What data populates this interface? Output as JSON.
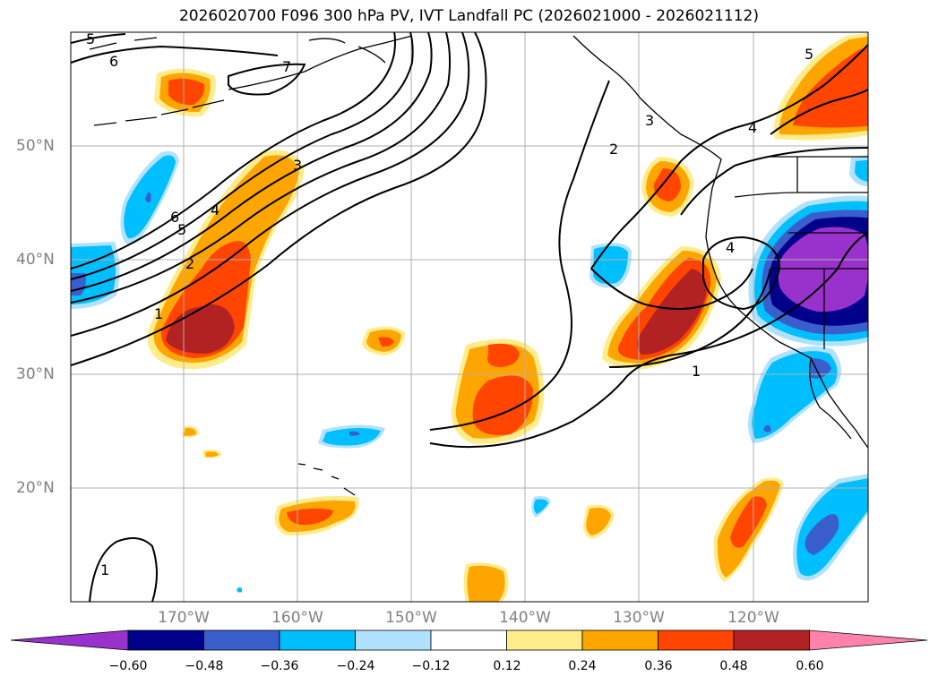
{
  "title": "2026020700 F096 300 hPa PV, IVT Landfall PC (2026021000 - 2026021112)",
  "lat_labels": [
    "50°N",
    "40°N",
    "30°N",
    "20°N"
  ],
  "lon_labels": [
    "170°W",
    "160°W",
    "150°W",
    "140°W",
    "130°W",
    "120°W"
  ],
  "contour_labels": [
    "5",
    "6",
    "7",
    "3",
    "4",
    "6",
    "5",
    "2",
    "1",
    "1",
    "2",
    "3",
    "4",
    "4",
    "1",
    "5"
  ],
  "colorbar": {
    "ticks": [
      "−0.60",
      "−0.48",
      "−0.36",
      "−0.24",
      "−0.12",
      "0.12",
      "0.24",
      "0.36",
      "0.48",
      "0.60"
    ],
    "colors": [
      "#9932cc",
      "#00008b",
      "#3a5fcd",
      "#00bfff",
      "#b0e2ff",
      "#ffffff",
      "#ffec8b",
      "#ffa500",
      "#ff4500",
      "#b22222",
      "#ff82ab"
    ]
  },
  "fill_colors": {
    "neg1": "#b0e2ff",
    "neg2": "#00bfff",
    "neg3": "#3a5fcd",
    "neg4": "#00008b",
    "neg5": "#9932cc",
    "pos1": "#ffec8b",
    "pos2": "#ffa500",
    "pos3": "#ff4500",
    "pos4": "#b22222"
  }
}
